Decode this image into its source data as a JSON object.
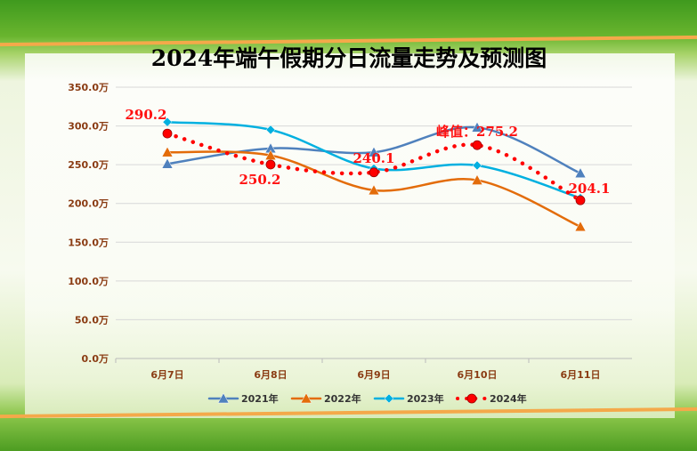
{
  "chart_data": {
    "type": "line",
    "title": "2024年端午假期分日流量走势及预测图",
    "categories": [
      "6月7日",
      "6月8日",
      "6月9日",
      "6月10日",
      "6月11日"
    ],
    "yticks": [
      "0.0万",
      "50.0万",
      "100.0万",
      "150.0万",
      "200.0万",
      "250.0万",
      "300.0万",
      "350.0万"
    ],
    "ylim": [
      0,
      350
    ],
    "grid": true,
    "legend_position": "bottom",
    "series": [
      {
        "name": "2021年",
        "values": [
          251,
          271,
          266,
          298,
          239
        ],
        "color": "#4f81bd",
        "marker": "triangle",
        "style": "solid"
      },
      {
        "name": "2022年",
        "values": [
          266,
          262,
          217,
          230,
          170
        ],
        "color": "#e36c0a",
        "marker": "triangle",
        "style": "solid"
      },
      {
        "name": "2023年",
        "values": [
          305,
          295,
          245,
          249,
          207
        ],
        "color": "#00b0e0",
        "marker": "diamond",
        "style": "solid"
      },
      {
        "name": "2024年",
        "values": [
          290.2,
          250.2,
          240.1,
          275.2,
          204.1
        ],
        "color": "#ff0000",
        "marker": "circle",
        "style": "dotted"
      }
    ],
    "annotations": [
      "290.2",
      "250.2",
      "240.1",
      "峰值：275.2",
      "204.1"
    ]
  }
}
